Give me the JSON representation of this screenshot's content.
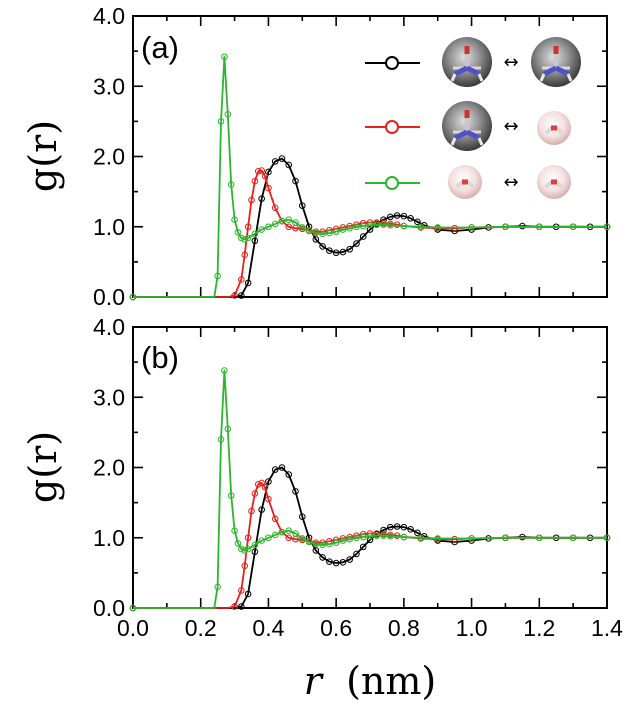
{
  "chart_data": [
    {
      "type": "line",
      "panel_label": "(a)",
      "ylabel": "g(r)",
      "xlim": [
        0.0,
        1.4
      ],
      "ylim": [
        0.0,
        4.0
      ],
      "x_ticks": [
        "0.0",
        "0.2",
        "0.4",
        "0.6",
        "0.8",
        "1.0",
        "1.2",
        "1.4"
      ],
      "y_ticks": [
        "0.0",
        "1.0",
        "2.0",
        "3.0",
        "4.0"
      ],
      "legend_position": "top-right",
      "series": [
        {
          "legend": "urea-urea",
          "color": "#000000",
          "x": [
            0.0,
            0.3,
            0.32,
            0.34,
            0.36,
            0.38,
            0.4,
            0.42,
            0.44,
            0.46,
            0.48,
            0.5,
            0.52,
            0.54,
            0.56,
            0.58,
            0.6,
            0.62,
            0.64,
            0.66,
            0.68,
            0.7,
            0.72,
            0.74,
            0.76,
            0.78,
            0.8,
            0.82,
            0.84,
            0.86,
            0.9,
            0.95,
            1.0,
            1.05,
            1.1,
            1.15,
            1.2,
            1.25,
            1.3,
            1.35,
            1.4
          ],
          "y": [
            0.0,
            0.0,
            0.02,
            0.2,
            0.8,
            1.4,
            1.78,
            1.93,
            1.97,
            1.88,
            1.65,
            1.3,
            1.0,
            0.82,
            0.72,
            0.66,
            0.63,
            0.64,
            0.68,
            0.76,
            0.86,
            0.96,
            1.04,
            1.1,
            1.14,
            1.16,
            1.15,
            1.12,
            1.07,
            1.02,
            0.96,
            0.94,
            0.96,
            0.99,
            1.0,
            1.01,
            1.0,
            1.0,
            1.0,
            1.0,
            1.0
          ]
        },
        {
          "legend": "urea-water",
          "color": "#e8201c",
          "x": [
            0.0,
            0.28,
            0.3,
            0.32,
            0.33,
            0.34,
            0.35,
            0.36,
            0.37,
            0.38,
            0.39,
            0.4,
            0.42,
            0.44,
            0.46,
            0.48,
            0.5,
            0.52,
            0.54,
            0.56,
            0.58,
            0.6,
            0.62,
            0.64,
            0.66,
            0.68,
            0.7,
            0.72,
            0.74,
            0.76,
            0.78,
            0.8,
            0.85,
            0.9,
            0.95,
            1.0,
            1.1,
            1.2,
            1.3,
            1.4
          ],
          "y": [
            0.0,
            0.0,
            0.02,
            0.25,
            0.6,
            1.0,
            1.38,
            1.65,
            1.79,
            1.8,
            1.72,
            1.55,
            1.27,
            1.08,
            1.0,
            0.98,
            0.97,
            0.95,
            0.93,
            0.93,
            0.95,
            0.97,
            0.99,
            1.01,
            1.03,
            1.05,
            1.06,
            1.06,
            1.05,
            1.04,
            1.03,
            1.01,
            0.99,
            0.98,
            0.98,
            0.99,
            1.0,
            1.0,
            1.0,
            1.0
          ]
        },
        {
          "legend": "water-water",
          "color": "#2db52d",
          "x": [
            0.0,
            0.24,
            0.25,
            0.26,
            0.27,
            0.28,
            0.29,
            0.3,
            0.31,
            0.32,
            0.33,
            0.34,
            0.36,
            0.38,
            0.4,
            0.42,
            0.44,
            0.46,
            0.48,
            0.5,
            0.52,
            0.54,
            0.56,
            0.58,
            0.6,
            0.62,
            0.64,
            0.66,
            0.68,
            0.7,
            0.72,
            0.74,
            0.76,
            0.8,
            0.85,
            0.9,
            1.0,
            1.1,
            1.2,
            1.3,
            1.4
          ],
          "y": [
            0.0,
            0.0,
            0.3,
            2.5,
            3.42,
            2.6,
            1.6,
            1.1,
            0.92,
            0.84,
            0.82,
            0.84,
            0.9,
            0.96,
            1.0,
            1.04,
            1.08,
            1.1,
            1.06,
            0.99,
            0.94,
            0.91,
            0.9,
            0.91,
            0.93,
            0.96,
            0.98,
            1.0,
            1.01,
            1.02,
            1.03,
            1.03,
            1.02,
            1.01,
            1.0,
            0.99,
            0.99,
            1.0,
            1.0,
            1.0,
            1.0
          ]
        }
      ]
    },
    {
      "type": "line",
      "panel_label": "(b)",
      "ylabel": "g(r)",
      "xlabel": "r (nm)",
      "xlim": [
        0.0,
        1.4
      ],
      "ylim": [
        0.0,
        4.0
      ],
      "x_ticks": [
        "0.0",
        "0.2",
        "0.4",
        "0.6",
        "0.8",
        "1.0",
        "1.2",
        "1.4"
      ],
      "y_ticks": [
        "0.0",
        "1.0",
        "2.0",
        "3.0",
        "4.0"
      ],
      "series": [
        {
          "color": "#000000",
          "x": [
            0.0,
            0.3,
            0.32,
            0.34,
            0.36,
            0.38,
            0.4,
            0.42,
            0.44,
            0.46,
            0.48,
            0.5,
            0.52,
            0.54,
            0.56,
            0.58,
            0.6,
            0.62,
            0.64,
            0.66,
            0.68,
            0.7,
            0.72,
            0.74,
            0.76,
            0.78,
            0.8,
            0.82,
            0.84,
            0.86,
            0.9,
            0.95,
            1.0,
            1.05,
            1.1,
            1.15,
            1.2,
            1.25,
            1.3,
            1.35,
            1.4
          ],
          "y": [
            0.0,
            0.0,
            0.02,
            0.2,
            0.8,
            1.4,
            1.8,
            1.97,
            2.0,
            1.9,
            1.66,
            1.3,
            1.0,
            0.82,
            0.72,
            0.66,
            0.64,
            0.65,
            0.69,
            0.77,
            0.87,
            0.97,
            1.05,
            1.11,
            1.15,
            1.16,
            1.15,
            1.12,
            1.07,
            1.02,
            0.96,
            0.94,
            0.96,
            0.99,
            1.0,
            1.01,
            1.0,
            1.0,
            1.0,
            1.0,
            1.0
          ]
        },
        {
          "color": "#e8201c",
          "x": [
            0.0,
            0.28,
            0.3,
            0.32,
            0.33,
            0.34,
            0.35,
            0.36,
            0.37,
            0.38,
            0.39,
            0.4,
            0.42,
            0.44,
            0.46,
            0.48,
            0.5,
            0.52,
            0.54,
            0.56,
            0.58,
            0.6,
            0.62,
            0.64,
            0.66,
            0.68,
            0.7,
            0.72,
            0.74,
            0.76,
            0.78,
            0.8,
            0.85,
            0.9,
            0.95,
            1.0,
            1.1,
            1.2,
            1.3,
            1.4
          ],
          "y": [
            0.0,
            0.0,
            0.02,
            0.25,
            0.6,
            1.0,
            1.38,
            1.63,
            1.76,
            1.78,
            1.72,
            1.55,
            1.27,
            1.08,
            1.0,
            0.98,
            0.97,
            0.95,
            0.93,
            0.93,
            0.95,
            0.97,
            0.99,
            1.01,
            1.03,
            1.05,
            1.06,
            1.06,
            1.05,
            1.04,
            1.03,
            1.01,
            0.99,
            0.98,
            0.98,
            0.99,
            1.0,
            1.0,
            1.0,
            1.0
          ]
        },
        {
          "color": "#2db52d",
          "x": [
            0.0,
            0.24,
            0.25,
            0.26,
            0.27,
            0.28,
            0.29,
            0.3,
            0.31,
            0.32,
            0.33,
            0.34,
            0.36,
            0.38,
            0.4,
            0.42,
            0.44,
            0.46,
            0.48,
            0.5,
            0.52,
            0.54,
            0.56,
            0.58,
            0.6,
            0.62,
            0.64,
            0.66,
            0.68,
            0.7,
            0.72,
            0.74,
            0.76,
            0.8,
            0.85,
            0.9,
            1.0,
            1.1,
            1.2,
            1.3,
            1.4
          ],
          "y": [
            0.0,
            0.0,
            0.3,
            2.4,
            3.38,
            2.55,
            1.6,
            1.1,
            0.92,
            0.84,
            0.82,
            0.84,
            0.9,
            0.96,
            1.0,
            1.04,
            1.08,
            1.1,
            1.06,
            0.99,
            0.94,
            0.91,
            0.9,
            0.91,
            0.93,
            0.96,
            0.98,
            1.0,
            1.01,
            1.02,
            1.03,
            1.03,
            1.02,
            1.01,
            1.0,
            0.99,
            0.99,
            1.0,
            1.0,
            1.0,
            1.0
          ]
        }
      ]
    }
  ]
}
